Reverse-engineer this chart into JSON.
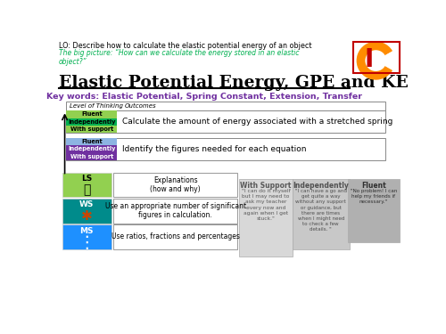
{
  "lo_text": "LO: Describe how to calculate the elastic potential energy of an object",
  "big_picture_text": "The big picture: “How can we calculate the energy stored in an elastic\nobject?”",
  "title": "Elastic Potential Energy, GPE and KE",
  "key_words": "Key words: Elastic Potential, Spring Constant, Extension, Transfer",
  "header_level": "Level of Thinking",
  "header_outcomes": "Outcomes",
  "row1_labels": [
    "Fluent",
    "Independently",
    "With support"
  ],
  "row1_colors": [
    "#92d050",
    "#00b050",
    "#92d050"
  ],
  "row1_text": "Calculate the amount of energy associated with a stretched spring",
  "row2_labels": [
    "Fluent",
    "Independently",
    "With support"
  ],
  "row2_colors": [
    "#8db4e2",
    "#7030a0",
    "#7030a0"
  ],
  "row2_text": "Identify the figures needed for each equation",
  "ls_color": "#92d050",
  "ws_color": "#008b8b",
  "ms_color": "#1e90ff",
  "ls_label": "LS",
  "ws_label": "WS",
  "ms_label": "MS",
  "ls_desc": "Explanations\n(how and why)",
  "ws_desc": "Use an appropriate number of significant\nfigures in calculation.",
  "ms_desc": "Use ratios, fractions and percentages",
  "support_title": "With Support",
  "support_text": "\"I can do it myself\nbut I may need to\nask my teacher\nevery now and\nagain when I get\nstuck.\"",
  "indep_title": "Independently",
  "indep_text": "\"I can have a go and\nget quite a way\nwithout any support\nor guidance, but\nthere are times\nwhen I might need\nto check a few\ndetails. \"",
  "fluent_title": "Fluent",
  "fluent_text": "\"No problem! I can\nhelp my friends if\nnecessary.\"",
  "bg_color": "#ffffff",
  "lo_color": "#000000",
  "big_pic_color": "#00b050",
  "key_color": "#7030a0",
  "logo_red": "#c00000",
  "logo_orange": "#ff8c00"
}
